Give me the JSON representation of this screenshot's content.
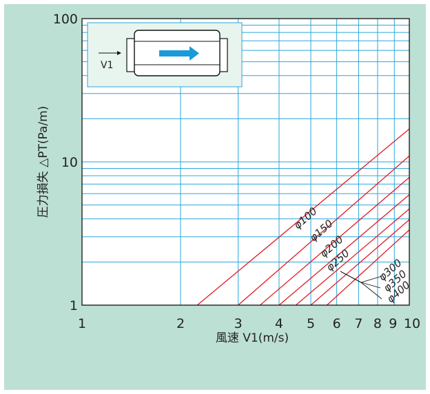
{
  "chart_data": {
    "type": "line",
    "xscale": "log",
    "yscale": "log",
    "xlim": [
      1,
      10
    ],
    "ylim": [
      1,
      100
    ],
    "xlabel": "風速 V1(m/s)",
    "ylabel": "圧力損失 △PT(Pa/m)",
    "x_ticks": [
      "1",
      "2",
      "3",
      "4",
      "5",
      "6",
      "7",
      "8",
      "9",
      "10"
    ],
    "y_ticks": [
      "1",
      "10",
      "100"
    ],
    "grid": true,
    "series": [
      {
        "name": "φ100",
        "x": [
          2.25,
          10
        ],
        "y": [
          1,
          17.0
        ]
      },
      {
        "name": "φ150",
        "x": [
          3.0,
          10
        ],
        "y": [
          1,
          11.0
        ]
      },
      {
        "name": "φ200",
        "x": [
          3.5,
          10
        ],
        "y": [
          1,
          7.8
        ]
      },
      {
        "name": "φ250",
        "x": [
          4.0,
          10
        ],
        "y": [
          1,
          5.9
        ]
      },
      {
        "name": "φ300",
        "x": [
          4.5,
          10
        ],
        "y": [
          1,
          4.7
        ]
      },
      {
        "name": "φ350",
        "x": [
          5.0,
          10
        ],
        "y": [
          1,
          3.95
        ]
      },
      {
        "name": "φ400",
        "x": [
          5.6,
          10
        ],
        "y": [
          1,
          3.35
        ]
      }
    ],
    "inset_label": "V1",
    "colors": {
      "background": "#bde0d4",
      "plot": "#ffffff",
      "grid": "#2aa6d9",
      "curve": "#e11b22",
      "arrow": "#1a9ad9"
    }
  }
}
